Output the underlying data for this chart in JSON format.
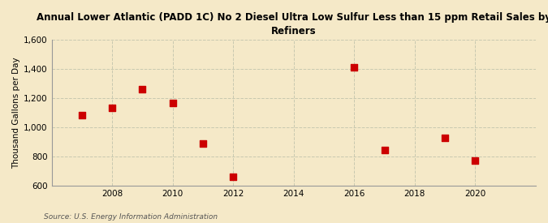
{
  "title_line1": "Annual Lower Atlantic (PADD 1C) No 2 Diesel Ultra Low Sulfur Less than 15 ppm Retail Sales by",
  "title_line2": "Refiners",
  "ylabel": "Thousand Gallons per Day",
  "source": "Source: U.S. Energy Information Administration",
  "background_color": "#f5e9c8",
  "plot_background_color": "#f5e9c8",
  "years": [
    2007,
    2008,
    2009,
    2010,
    2011,
    2012,
    2016,
    2017,
    2019,
    2020
  ],
  "values": [
    1082,
    1130,
    1260,
    1165,
    885,
    660,
    1410,
    845,
    925,
    770
  ],
  "marker_color": "#cc0000",
  "marker_size": 6,
  "xlim": [
    2006,
    2022
  ],
  "ylim": [
    600,
    1600
  ],
  "yticks": [
    600,
    800,
    1000,
    1200,
    1400,
    1600
  ],
  "xticks": [
    2008,
    2010,
    2012,
    2014,
    2016,
    2018,
    2020
  ],
  "grid_color": "#c8c8b0",
  "title_fontsize": 8.5,
  "ylabel_fontsize": 7.5,
  "tick_fontsize": 7.5,
  "source_fontsize": 6.5
}
